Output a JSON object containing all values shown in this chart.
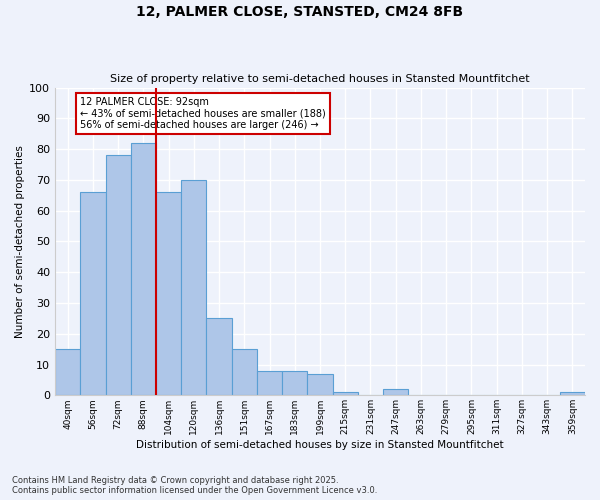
{
  "title": "12, PALMER CLOSE, STANSTED, CM24 8FB",
  "subtitle": "Size of property relative to semi-detached houses in Stansted Mountfitchet",
  "xlabel": "Distribution of semi-detached houses by size in Stansted Mountfitchet",
  "ylabel": "Number of semi-detached properties",
  "categories": [
    "40sqm",
    "56sqm",
    "72sqm",
    "88sqm",
    "104sqm",
    "120sqm",
    "136sqm",
    "151sqm",
    "167sqm",
    "183sqm",
    "199sqm",
    "215sqm",
    "231sqm",
    "247sqm",
    "263sqm",
    "279sqm",
    "295sqm",
    "311sqm",
    "327sqm",
    "343sqm",
    "359sqm"
  ],
  "values": [
    15,
    66,
    78,
    82,
    66,
    70,
    25,
    15,
    8,
    8,
    7,
    1,
    0,
    2,
    0,
    0,
    0,
    0,
    0,
    0,
    1
  ],
  "bar_color": "#aec6e8",
  "bar_edge_color": "#5a9fd4",
  "vline_x_index": 3.5,
  "vline_color": "#cc0000",
  "annotation_title": "12 PALMER CLOSE: 92sqm",
  "annotation_line1": "← 43% of semi-detached houses are smaller (188)",
  "annotation_line2": "56% of semi-detached houses are larger (246) →",
  "annotation_box_color": "#cc0000",
  "footer_line1": "Contains HM Land Registry data © Crown copyright and database right 2025.",
  "footer_line2": "Contains public sector information licensed under the Open Government Licence v3.0.",
  "ylim": [
    0,
    100
  ],
  "background_color": "#eef2fb",
  "plot_background": "#eef2fb",
  "grid_color": "#ffffff"
}
